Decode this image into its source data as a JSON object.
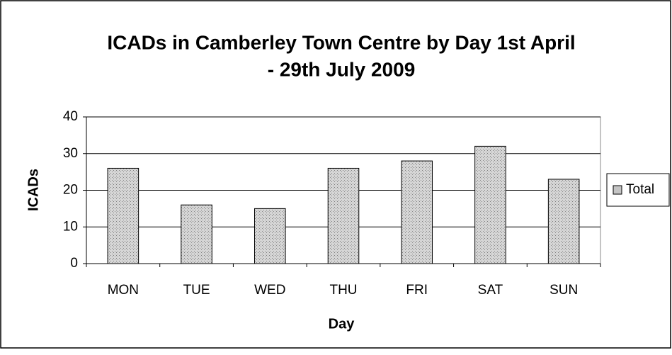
{
  "chart_data": {
    "type": "bar",
    "title": [
      "ICADs in Camberley Town Centre by Day 1st April",
      "- 29th July 2009"
    ],
    "x_label": "Day",
    "y_label": "ICADs",
    "categories": [
      "MON",
      "TUE",
      "WED",
      "THU",
      "FRI",
      "SAT",
      "SUN"
    ],
    "series": [
      {
        "name": "Total",
        "color": "#c4c4c4",
        "values": [
          26,
          16,
          15,
          26,
          28,
          32,
          23
        ]
      }
    ],
    "ylim": [
      0,
      40
    ],
    "yticks": [
      0,
      10,
      20,
      30,
      40
    ],
    "grid": true,
    "legend": "right"
  }
}
